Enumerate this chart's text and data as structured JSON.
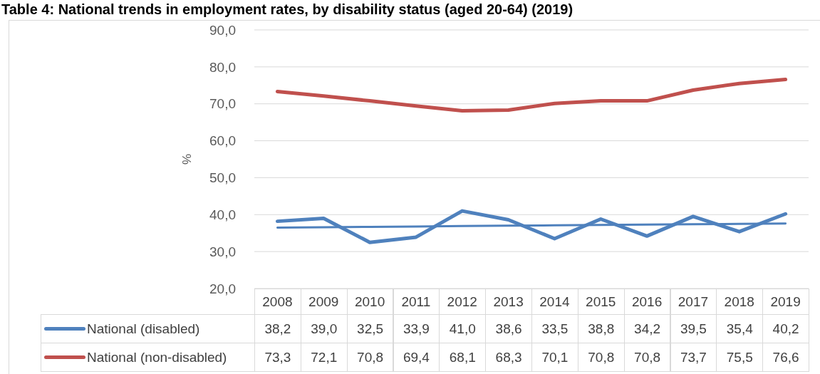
{
  "chart_data": {
    "type": "line",
    "title": "Table 4: National trends in employment rates, by disability status (aged 20-64) (2019)",
    "ylabel": "%",
    "categories": [
      "2008",
      "2009",
      "2010",
      "2011",
      "2012",
      "2013",
      "2014",
      "2015",
      "2016",
      "2017",
      "2018",
      "2019"
    ],
    "series": [
      {
        "name": "National (disabled)",
        "color": "#4f81bd",
        "values": [
          38.2,
          39.0,
          32.5,
          33.9,
          41.0,
          38.6,
          33.5,
          38.8,
          34.2,
          39.5,
          35.4,
          40.2
        ],
        "value_labels": [
          "38,2",
          "39,0",
          "32,5",
          "33,9",
          "41,0",
          "38,6",
          "33,5",
          "38,8",
          "34,2",
          "39,5",
          "35,4",
          "40,2"
        ]
      },
      {
        "name": "National (non-disabled)",
        "color": "#c0504d",
        "values": [
          73.3,
          72.1,
          70.8,
          69.4,
          68.1,
          68.3,
          70.1,
          70.8,
          70.8,
          73.7,
          75.5,
          76.6
        ],
        "value_labels": [
          "73,3",
          "72,1",
          "70,8",
          "69,4",
          "68,1",
          "68,3",
          "70,1",
          "70,8",
          "70,8",
          "73,7",
          "75,5",
          "76,6"
        ]
      },
      {
        "type": "line",
        "color": "#4f81bd",
        "values": [
          36.5,
          36.6,
          36.7,
          36.8,
          36.9,
          37.0,
          37.1,
          37.2,
          37.3,
          37.4,
          37.5,
          37.6
        ]
      }
    ],
    "ylim": [
      20,
      90
    ],
    "yticks": [
      {
        "value": 20,
        "label": "20,0"
      },
      {
        "value": 30,
        "label": "30,0"
      },
      {
        "value": 40,
        "label": "40,0"
      },
      {
        "value": 50,
        "label": "50,0"
      },
      {
        "value": 60,
        "label": "60,0"
      },
      {
        "value": 70,
        "label": "70,0"
      },
      {
        "value": 80,
        "label": "80,0"
      },
      {
        "value": 90,
        "label": "90,0"
      }
    ],
    "grid": "y",
    "legend": "bottom",
    "line_style": "solid"
  }
}
